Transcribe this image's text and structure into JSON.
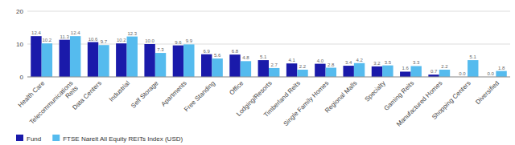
{
  "chart_data": {
    "type": "bar",
    "categories": [
      "Health Care",
      "Telecommunications\nReits",
      "Data Centers",
      "Industrial",
      "Self Storage",
      "Apartments",
      "Free Standing",
      "Office",
      "Lodging/Resorts",
      "Timberland Reits",
      "Single Family Homes",
      "Regional Malls",
      "Specialty",
      "Gaming Reits",
      "Manufactured Homes",
      "Shopping Centers",
      "Diversified"
    ],
    "series": [
      {
        "name": "Fund",
        "color": "#1a1aaa",
        "values": [
          12.4,
          11.3,
          10.6,
          10.2,
          10.0,
          9.6,
          6.9,
          6.8,
          5.1,
          4.1,
          4.0,
          3.4,
          3.2,
          1.6,
          0.7,
          0.0,
          0.0
        ],
        "value_labels": [
          "12.4",
          "11.3",
          "10.6",
          "10.2",
          "10.0",
          "9.6",
          "6.9",
          "6.8",
          "5.1",
          "4.1",
          "4.0",
          "3.4",
          "3.2",
          "1.6",
          "0.7",
          "0.0",
          "0.0"
        ]
      },
      {
        "name": "FTSE Nareit All Equity REITs Index (USD)",
        "color": "#55bbee",
        "values": [
          10.2,
          12.4,
          9.7,
          12.3,
          7.3,
          9.9,
          5.6,
          4.8,
          2.7,
          2.2,
          2.8,
          4.2,
          3.5,
          3.3,
          2.2,
          5.1,
          1.8
        ],
        "value_labels": [
          "10.2",
          "12.4",
          "9.7",
          "12.3",
          "7.3",
          "9.9",
          "5.6",
          "4.8",
          "2.7",
          "2.2",
          "2.8",
          "4.2",
          "3.5",
          "3.3",
          "2.2",
          "5.1",
          "1.8"
        ]
      }
    ],
    "ylim": [
      0,
      20
    ],
    "yticks": [
      0,
      10,
      20
    ],
    "grid": true,
    "data_labels": true,
    "legend": "bottom"
  }
}
